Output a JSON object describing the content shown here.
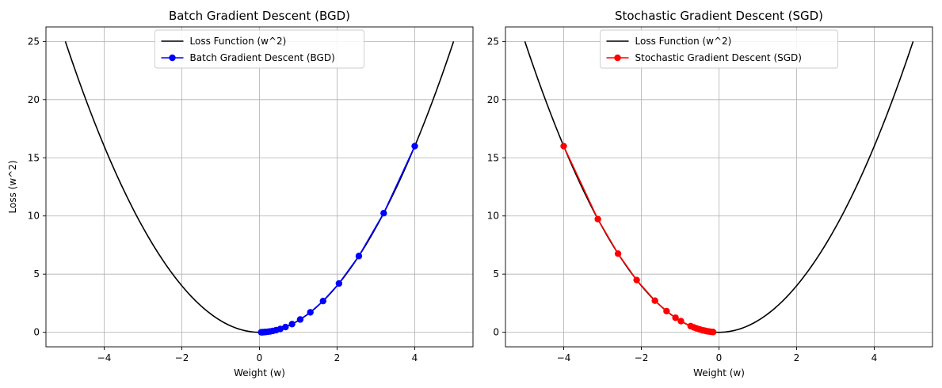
{
  "chart_data": [
    {
      "type": "line",
      "title": "Batch Gradient Descent (BGD)",
      "xlabel": "Weight (w)",
      "ylabel": "Loss (w^2)",
      "xlim": [
        -5.5,
        5.5
      ],
      "ylim": [
        -1.25,
        26.25
      ],
      "xticks": [
        -4,
        -2,
        0,
        2,
        4
      ],
      "yticks": [
        0,
        5,
        10,
        15,
        20,
        25
      ],
      "xtick_labels": [
        "−4",
        "−2",
        "0",
        "2",
        "4"
      ],
      "ytick_labels": [
        "0",
        "5",
        "10",
        "15",
        "20",
        "25"
      ],
      "grid": true,
      "legend": "upper center",
      "loss_curve": {
        "name": "Loss Function (w^2)",
        "color": "#000000",
        "x_range": [
          -5,
          5
        ],
        "formula": "w^2"
      },
      "path": {
        "name": "Batch Gradient Descent (BGD)",
        "color": "#0000ff",
        "marker": "circle",
        "w": [
          4.0,
          3.2,
          2.56,
          2.048,
          1.638,
          1.311,
          1.049,
          0.839,
          0.671,
          0.537,
          0.429,
          0.344,
          0.275,
          0.22,
          0.176,
          0.141,
          0.113,
          0.09,
          0.072,
          0.058,
          0.046
        ],
        "loss": [
          16.0,
          10.24,
          6.554,
          4.194,
          2.684,
          1.718,
          1.1,
          0.704,
          0.45,
          0.288,
          0.184,
          0.118,
          0.076,
          0.048,
          0.031,
          0.02,
          0.013,
          0.008,
          0.005,
          0.003,
          0.002
        ]
      }
    },
    {
      "type": "line",
      "title": "Stochastic Gradient Descent (SGD)",
      "xlabel": "Weight (w)",
      "ylabel": "",
      "xlim": [
        -5.5,
        5.5
      ],
      "ylim": [
        -1.25,
        26.25
      ],
      "xticks": [
        -4,
        -2,
        0,
        2,
        4
      ],
      "yticks": [
        0,
        5,
        10,
        15,
        20,
        25
      ],
      "xtick_labels": [
        "−4",
        "−2",
        "0",
        "2",
        "4"
      ],
      "ytick_labels": [
        "0",
        "5",
        "10",
        "15",
        "20",
        "25"
      ],
      "grid": true,
      "legend": "upper center",
      "loss_curve": {
        "name": "Loss Function (w^2)",
        "color": "#000000",
        "x_range": [
          -5,
          5
        ],
        "formula": "w^2"
      },
      "path": {
        "name": "Stochastic Gradient Descent (SGD)",
        "color": "#ff0000",
        "marker": "circle",
        "w": [
          -4.0,
          -3.12,
          -2.6,
          -2.12,
          -1.65,
          -1.35,
          -1.12,
          -0.98,
          -0.73,
          -0.65,
          -0.58,
          -0.5,
          -0.43,
          -0.37,
          -0.32,
          -0.27,
          -0.22,
          -0.18,
          -0.15
        ],
        "loss": [
          16.0,
          9.73,
          6.76,
          4.49,
          2.72,
          1.82,
          1.25,
          0.96,
          0.53,
          0.42,
          0.34,
          0.25,
          0.18,
          0.14,
          0.1,
          0.07,
          0.05,
          0.03,
          0.02
        ]
      }
    }
  ]
}
